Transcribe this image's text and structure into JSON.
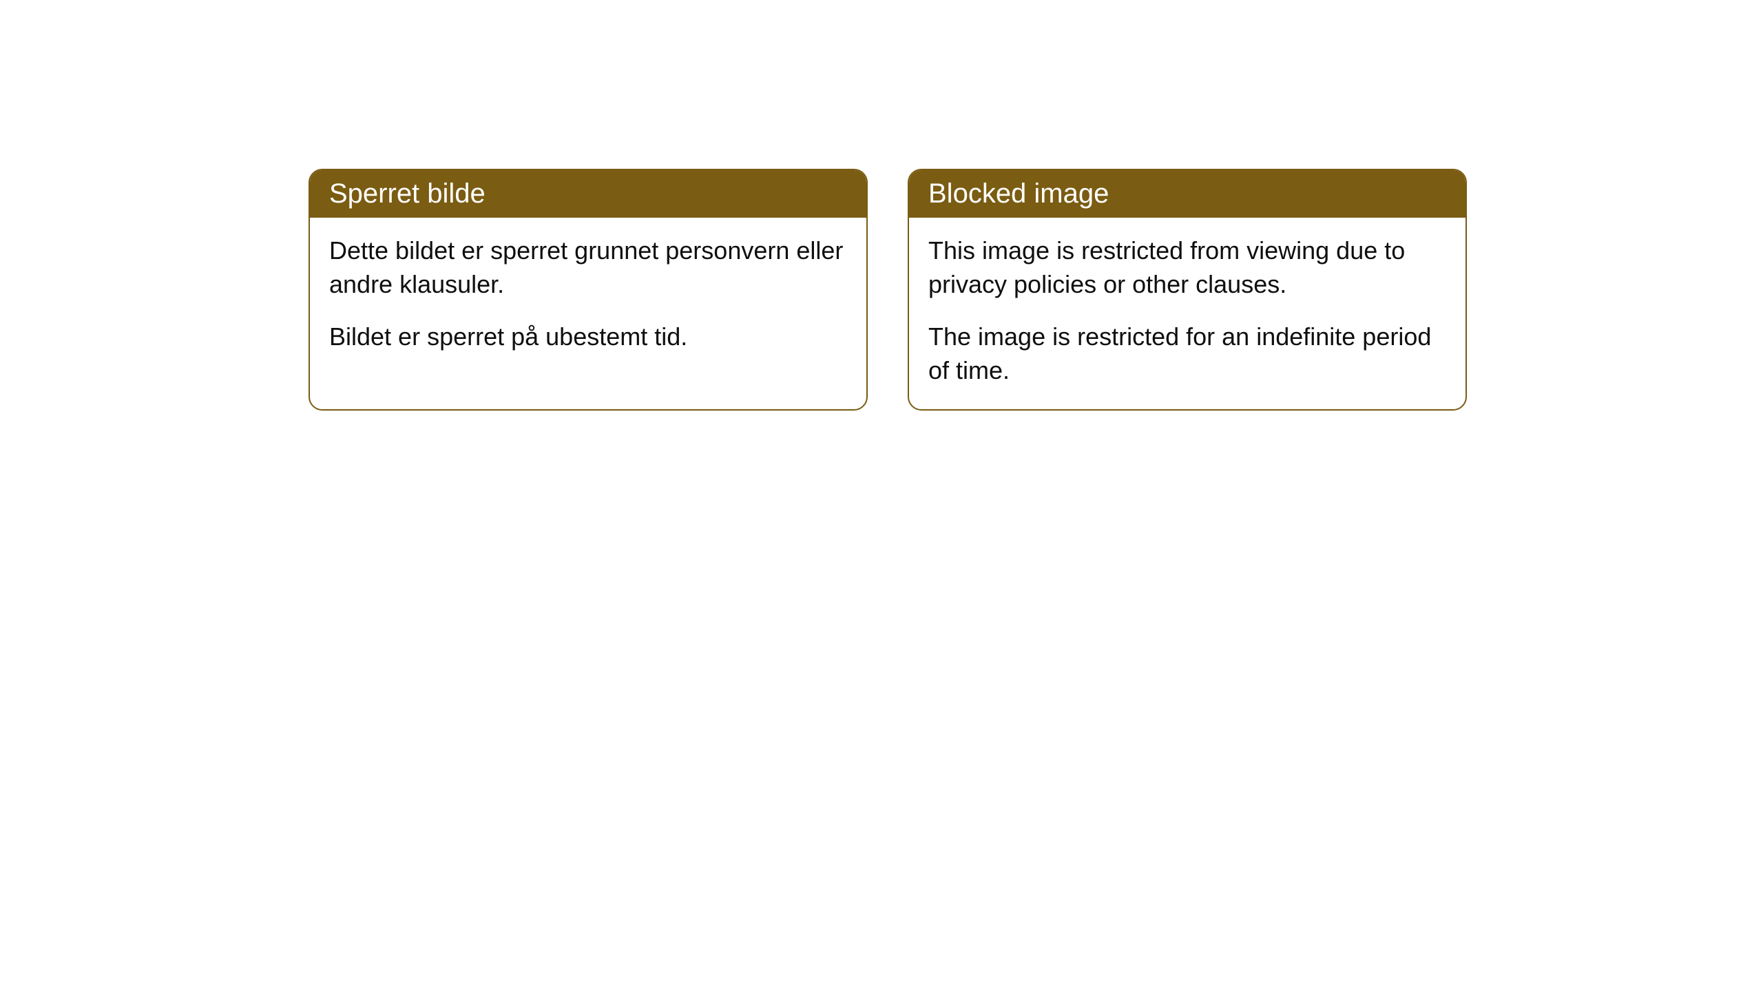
{
  "cards": {
    "left": {
      "title": "Sperret bilde",
      "paragraph1": "Dette bildet er sperret grunnet personvern eller andre klausuler.",
      "paragraph2": "Bildet er sperret på ubestemt tid."
    },
    "right": {
      "title": "Blocked image",
      "paragraph1": "This image is restricted from viewing due to privacy policies or other clauses.",
      "paragraph2": "The image is restricted for an indefinite period of time."
    }
  },
  "style": {
    "header_bg_color": "#7a5c12",
    "header_text_color": "#ffffff",
    "border_color": "#7a5c12",
    "body_text_color": "#0f0f0f",
    "card_bg_color": "#ffffff",
    "page_bg_color": "#ffffff",
    "border_radius": 20,
    "header_fontsize": 40,
    "body_fontsize": 36
  }
}
